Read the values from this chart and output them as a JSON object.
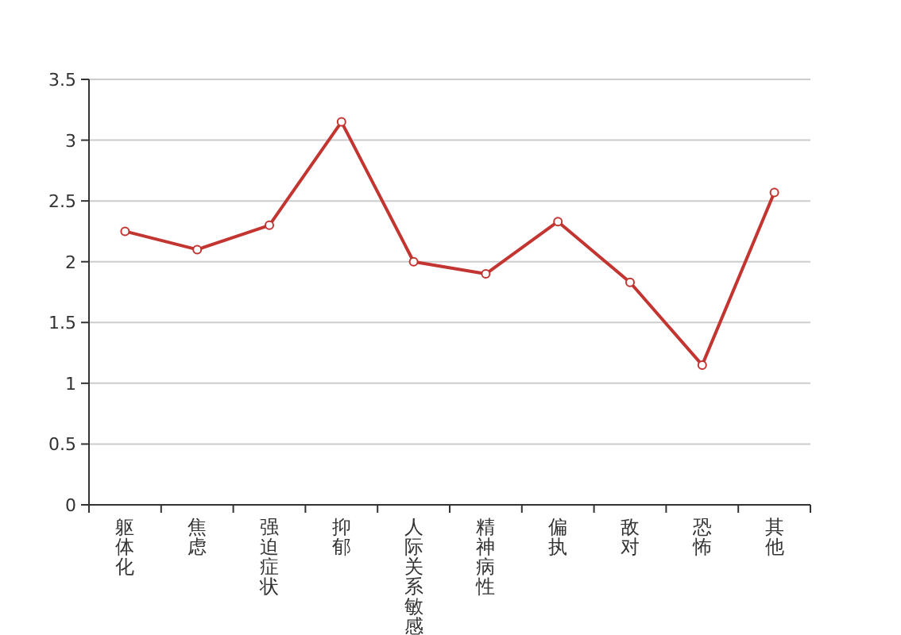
{
  "chart_data": {
    "type": "line",
    "categories": [
      "躯体化",
      "焦虑",
      "强迫症状",
      "抑郁",
      "人际关系敏感",
      "精神病性",
      "偏执",
      "敌对",
      "恐怖",
      "其他"
    ],
    "series": [
      {
        "color": "#c23531",
        "values": [
          2.25,
          2.1,
          2.3,
          3.15,
          2.0,
          1.9,
          2.33,
          1.83,
          1.15,
          2.57
        ]
      }
    ],
    "ylim": [
      0,
      3.5
    ],
    "yticks": [
      0,
      0.5,
      1,
      1.5,
      2,
      2.5,
      3,
      3.5
    ],
    "grid": "y",
    "marker": "circle",
    "line_style": "solid"
  }
}
